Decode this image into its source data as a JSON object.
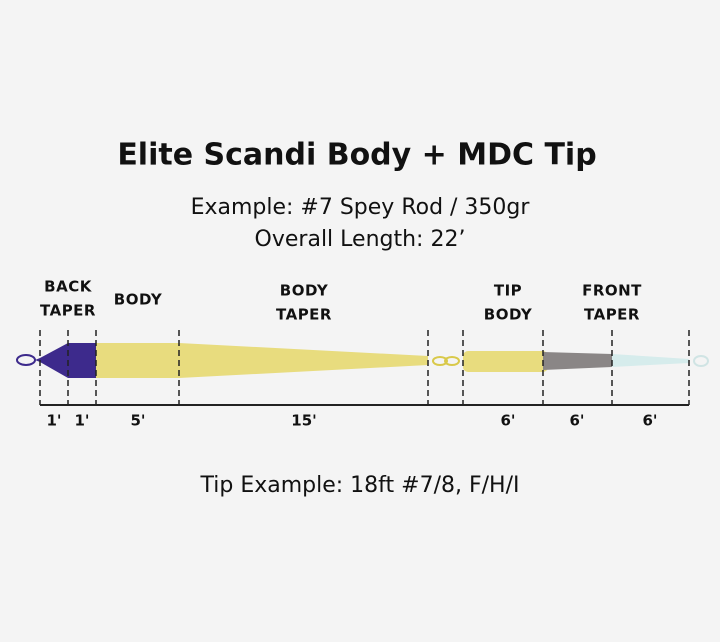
{
  "header": {
    "title": "Elite Scandi Body + MDC Tip",
    "lines": [
      "Example: #7 Spey Rod / 350gr",
      "Overall Length: 22’"
    ]
  },
  "sections": [
    [
      "BACK",
      "TAPER"
    ],
    [
      "BODY"
    ],
    [
      "BODY",
      "TAPER"
    ],
    [
      "TIP",
      "BODY"
    ],
    [
      "FRONT",
      "TAPER"
    ]
  ],
  "lengths": [
    "1'",
    "1'",
    "5'",
    "15'",
    "6'",
    "6'",
    "6'"
  ],
  "footer": {
    "tip_example": "Tip Example: 18ft #7/8, F/H/I"
  }
}
